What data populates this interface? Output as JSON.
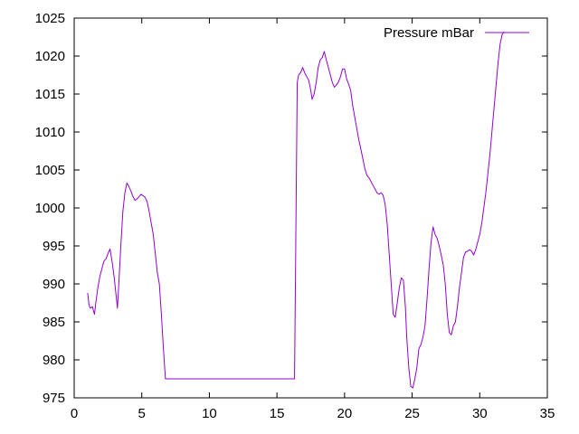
{
  "chart_data": {
    "type": "line",
    "title": "",
    "xlabel": "",
    "ylabel": "",
    "xlim": [
      0,
      35
    ],
    "ylim": [
      975,
      1025
    ],
    "xticks": [
      0,
      5,
      10,
      15,
      20,
      25,
      30,
      35
    ],
    "yticks": [
      975,
      980,
      985,
      990,
      995,
      1000,
      1005,
      1010,
      1015,
      1020,
      1025
    ],
    "grid": false,
    "legend": "top-right",
    "series": [
      {
        "name": "Pressure mBar",
        "color": "#9400d3",
        "points": [
          [
            1.0,
            988.8
          ],
          [
            1.1,
            987.2
          ],
          [
            1.2,
            986.8
          ],
          [
            1.35,
            987.0
          ],
          [
            1.5,
            986.0
          ],
          [
            1.6,
            987.5
          ],
          [
            1.75,
            989.5
          ],
          [
            1.9,
            991.0
          ],
          [
            2.05,
            992.0
          ],
          [
            2.2,
            993.0
          ],
          [
            2.35,
            993.3
          ],
          [
            2.5,
            994.0
          ],
          [
            2.65,
            994.6
          ],
          [
            2.8,
            993.0
          ],
          [
            2.95,
            991.0
          ],
          [
            3.1,
            988.5
          ],
          [
            3.2,
            986.8
          ],
          [
            3.3,
            990.0
          ],
          [
            3.45,
            995.0
          ],
          [
            3.6,
            999.5
          ],
          [
            3.75,
            1002.0
          ],
          [
            3.9,
            1003.3
          ],
          [
            4.05,
            1002.8
          ],
          [
            4.2,
            1002.2
          ],
          [
            4.35,
            1001.5
          ],
          [
            4.5,
            1001.0
          ],
          [
            4.65,
            1001.2
          ],
          [
            4.8,
            1001.5
          ],
          [
            4.95,
            1001.8
          ],
          [
            5.1,
            1001.6
          ],
          [
            5.25,
            1001.4
          ],
          [
            5.4,
            1000.8
          ],
          [
            5.55,
            999.5
          ],
          [
            5.7,
            998.0
          ],
          [
            5.85,
            996.5
          ],
          [
            6.0,
            994.0
          ],
          [
            6.15,
            991.5
          ],
          [
            6.3,
            990.0
          ],
          [
            6.45,
            986.0
          ],
          [
            6.6,
            981.5
          ],
          [
            6.75,
            977.5
          ],
          [
            7.0,
            977.5
          ],
          [
            10.0,
            977.5
          ],
          [
            13.0,
            977.5
          ],
          [
            16.3,
            977.5
          ],
          [
            16.4,
            997.0
          ],
          [
            16.5,
            1016.5
          ],
          [
            16.6,
            1017.5
          ],
          [
            16.75,
            1017.8
          ],
          [
            16.9,
            1018.5
          ],
          [
            17.05,
            1017.8
          ],
          [
            17.2,
            1017.3
          ],
          [
            17.35,
            1016.8
          ],
          [
            17.5,
            1015.5
          ],
          [
            17.6,
            1014.3
          ],
          [
            17.75,
            1015.0
          ],
          [
            17.9,
            1016.5
          ],
          [
            18.05,
            1018.5
          ],
          [
            18.2,
            1019.5
          ],
          [
            18.35,
            1019.8
          ],
          [
            18.5,
            1020.6
          ],
          [
            18.65,
            1019.5
          ],
          [
            18.8,
            1018.5
          ],
          [
            18.95,
            1017.5
          ],
          [
            19.1,
            1016.5
          ],
          [
            19.25,
            1015.9
          ],
          [
            19.4,
            1016.2
          ],
          [
            19.55,
            1016.6
          ],
          [
            19.7,
            1017.3
          ],
          [
            19.85,
            1018.3
          ],
          [
            20.0,
            1018.3
          ],
          [
            20.15,
            1017.0
          ],
          [
            20.3,
            1016.3
          ],
          [
            20.45,
            1015.5
          ],
          [
            20.6,
            1013.5
          ],
          [
            20.75,
            1012.0
          ],
          [
            20.9,
            1010.5
          ],
          [
            21.05,
            1009.0
          ],
          [
            21.2,
            1007.8
          ],
          [
            21.35,
            1006.5
          ],
          [
            21.5,
            1005.2
          ],
          [
            21.65,
            1004.3
          ],
          [
            21.8,
            1004.0
          ],
          [
            21.95,
            1003.5
          ],
          [
            22.1,
            1003.0
          ],
          [
            22.25,
            1002.5
          ],
          [
            22.4,
            1002.0
          ],
          [
            22.55,
            1001.8
          ],
          [
            22.7,
            1002.0
          ],
          [
            22.85,
            1001.7
          ],
          [
            23.0,
            1000.5
          ],
          [
            23.15,
            998.0
          ],
          [
            23.3,
            994.0
          ],
          [
            23.45,
            990.0
          ],
          [
            23.6,
            986.0
          ],
          [
            23.75,
            985.6
          ],
          [
            23.9,
            987.5
          ],
          [
            24.05,
            989.5
          ],
          [
            24.2,
            990.8
          ],
          [
            24.35,
            990.5
          ],
          [
            24.5,
            987.0
          ],
          [
            24.6,
            983.0
          ],
          [
            24.75,
            979.0
          ],
          [
            24.9,
            976.5
          ],
          [
            25.05,
            976.3
          ],
          [
            25.2,
            977.5
          ],
          [
            25.35,
            979.0
          ],
          [
            25.5,
            981.5
          ],
          [
            25.65,
            982.0
          ],
          [
            25.8,
            983.0
          ],
          [
            25.95,
            984.5
          ],
          [
            26.1,
            988.0
          ],
          [
            26.25,
            992.0
          ],
          [
            26.4,
            995.5
          ],
          [
            26.55,
            997.5
          ],
          [
            26.7,
            996.5
          ],
          [
            26.85,
            996.0
          ],
          [
            27.0,
            995.0
          ],
          [
            27.15,
            993.8
          ],
          [
            27.3,
            992.5
          ],
          [
            27.45,
            990.0
          ],
          [
            27.6,
            986.0
          ],
          [
            27.75,
            983.6
          ],
          [
            27.9,
            983.3
          ],
          [
            28.05,
            984.5
          ],
          [
            28.2,
            985.0
          ],
          [
            28.35,
            987.0
          ],
          [
            28.5,
            989.5
          ],
          [
            28.65,
            991.5
          ],
          [
            28.8,
            993.5
          ],
          [
            28.95,
            994.2
          ],
          [
            29.1,
            994.3
          ],
          [
            29.25,
            994.5
          ],
          [
            29.4,
            994.3
          ],
          [
            29.55,
            993.8
          ],
          [
            29.7,
            994.5
          ],
          [
            29.85,
            995.5
          ],
          [
            30.0,
            996.5
          ],
          [
            30.15,
            998.0
          ],
          [
            30.3,
            1000.0
          ],
          [
            30.45,
            1002.0
          ],
          [
            30.6,
            1004.5
          ],
          [
            30.75,
            1007.0
          ],
          [
            30.9,
            1010.0
          ],
          [
            31.05,
            1013.0
          ],
          [
            31.2,
            1016.0
          ],
          [
            31.35,
            1019.0
          ],
          [
            31.5,
            1021.5
          ],
          [
            31.65,
            1022.8
          ],
          [
            31.8,
            1023.2
          ]
        ]
      }
    ]
  }
}
